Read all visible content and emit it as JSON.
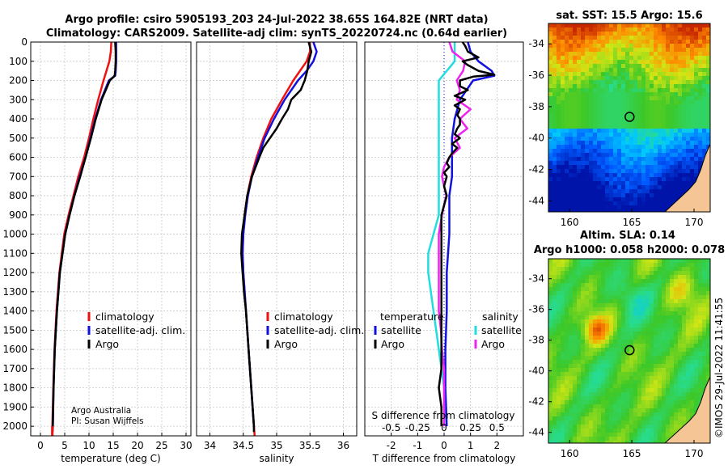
{
  "header": {
    "line1": "Argo profile: csiro 5905193_203 24-Jul-2022 38.65S 164.82E (NRT data)",
    "line2": "Climatology: CARS2009. Satellite-adj clim: synTS_20220724.nc (0.64d earlier)"
  },
  "colors": {
    "climatology": "#ee1111",
    "satellite_clim": "#1111dd",
    "argo": "#000000",
    "sat_t_diff": "#1111dd",
    "sat_s_diff": "#22dddd",
    "argo_s_diff": "#ee22ee"
  },
  "credit": {
    "line1": "Argo Australia",
    "line2": "PI: Susan Wijffels"
  },
  "watermark": "©IMOS 29-Jul-2022 11:41:55",
  "chart_data": [
    {
      "type": "line",
      "name": "temperature-profile",
      "xlabel": "temperature (deg C)",
      "ylabel": "",
      "xlim": [
        -2,
        31
      ],
      "ylim": [
        2050,
        0
      ],
      "xticks": [
        "0",
        "5",
        "10",
        "15",
        "20",
        "25",
        "30"
      ],
      "yticks": [
        "0",
        "100",
        "200",
        "300",
        "400",
        "500",
        "600",
        "700",
        "800",
        "900",
        "1000",
        "1100",
        "1200",
        "1300",
        "1400",
        "1500",
        "1600",
        "1700",
        "1800",
        "1900",
        "2000"
      ],
      "legend": [
        "climatology",
        "satellite-adj. clim.",
        "Argo"
      ],
      "series": [
        {
          "name": "climatology",
          "depth": [
            0,
            50,
            100,
            150,
            200,
            300,
            400,
            500,
            600,
            700,
            800,
            900,
            1000,
            1200,
            1400,
            1600,
            1800,
            2000,
            2050
          ],
          "values": [
            14.6,
            14.5,
            14.2,
            13.6,
            13.0,
            11.9,
            10.9,
            10.0,
            9.0,
            7.8,
            6.8,
            5.8,
            4.9,
            3.9,
            3.3,
            2.9,
            2.65,
            2.45,
            2.42
          ]
        },
        {
          "name": "satellite-adj. clim.",
          "depth": [
            0,
            50,
            100,
            150,
            175,
            200,
            300,
            400,
            500,
            600,
            700,
            800,
            900,
            1000,
            1200,
            1400,
            1600,
            1800,
            2000
          ],
          "values": [
            15.6,
            15.6,
            15.6,
            15.5,
            15.4,
            14.1,
            12.5,
            11.3,
            10.3,
            9.3,
            8.1,
            7.0,
            6.0,
            5.1,
            4.0,
            3.4,
            2.95,
            2.7,
            2.55
          ]
        },
        {
          "name": "Argo",
          "depth": [
            0,
            50,
            100,
            150,
            175,
            200,
            300,
            400,
            500,
            600,
            700,
            800,
            900,
            1000,
            1200,
            1400,
            1600,
            1800,
            2000,
            2030
          ],
          "values": [
            15.4,
            15.5,
            15.5,
            15.4,
            15.3,
            14.3,
            12.6,
            11.4,
            10.4,
            9.3,
            8.2,
            7.0,
            6.0,
            5.1,
            4.0,
            3.4,
            2.95,
            2.7,
            2.55,
            2.5
          ]
        }
      ]
    },
    {
      "type": "line",
      "name": "salinity-profile",
      "xlabel": "salinity",
      "xlim": [
        33.8,
        36.2
      ],
      "ylim": [
        2050,
        0
      ],
      "xticks": [
        "34",
        "34.5",
        "35",
        "35.5",
        "36"
      ],
      "legend": [
        "climatology",
        "satellite-adj. clim.",
        "Argo"
      ],
      "series": [
        {
          "name": "climatology",
          "depth": [
            0,
            50,
            100,
            150,
            200,
            300,
            400,
            500,
            600,
            700,
            800,
            900,
            1000,
            1100,
            1200,
            1400,
            1600,
            1800,
            2000,
            2050
          ],
          "values": [
            35.5,
            35.5,
            35.45,
            35.35,
            35.25,
            35.08,
            34.92,
            34.8,
            34.7,
            34.62,
            34.56,
            34.52,
            34.5,
            34.49,
            34.5,
            34.54,
            34.58,
            34.62,
            34.66,
            34.67
          ]
        },
        {
          "name": "satellite-adj. clim.",
          "depth": [
            0,
            50,
            100,
            150,
            200,
            300,
            400,
            500,
            600,
            700,
            800,
            900,
            1000,
            1100,
            1200,
            1400,
            1600,
            1800,
            2000
          ],
          "values": [
            35.55,
            35.6,
            35.55,
            35.45,
            35.32,
            35.12,
            34.96,
            34.82,
            34.72,
            34.63,
            34.57,
            34.53,
            34.5,
            34.49,
            34.5,
            34.54,
            34.58,
            34.62,
            34.66
          ]
        },
        {
          "name": "Argo",
          "depth": [
            0,
            50,
            100,
            150,
            200,
            250,
            300,
            350,
            400,
            450,
            500,
            550,
            600,
            700,
            800,
            900,
            1000,
            1100,
            1200,
            1300,
            1400,
            1600,
            1800,
            1900,
            2000,
            2030
          ],
          "values": [
            35.48,
            35.52,
            35.48,
            35.46,
            35.42,
            35.36,
            35.22,
            35.17,
            35.08,
            35.0,
            34.9,
            34.8,
            34.74,
            34.63,
            34.56,
            34.52,
            34.48,
            34.47,
            34.49,
            34.51,
            34.54,
            34.58,
            34.62,
            34.64,
            34.66,
            34.66
          ]
        }
      ]
    },
    {
      "type": "line",
      "name": "difference-from-climatology",
      "xlabel": "T difference from climatology",
      "xlabel_secondary": "S difference from climatology",
      "xlim": [
        -3,
        3
      ],
      "ylim": [
        2050,
        0
      ],
      "xticks": [
        "-2",
        "-1",
        "0",
        "1",
        "2"
      ],
      "xticks_secondary": [
        "-0.5",
        "-0.25",
        "0",
        "0.25",
        "0.5"
      ],
      "legend_temperature": {
        "title": "temperature",
        "entries": [
          "satellite",
          "Argo"
        ]
      },
      "legend_salinity": {
        "title": "salinity",
        "entries": [
          "satellite",
          "Argo"
        ]
      },
      "series": [
        {
          "name": "T satellite",
          "depth": [
            0,
            50,
            100,
            150,
            175,
            200,
            300,
            400,
            500,
            600,
            700,
            800,
            900,
            1000,
            1200,
            1400,
            1600,
            1800,
            2000
          ],
          "values": [
            0.9,
            1.0,
            1.3,
            1.8,
            1.9,
            1.1,
            0.6,
            0.4,
            0.3,
            0.3,
            0.3,
            0.2,
            0.2,
            0.2,
            0.1,
            0.1,
            0.05,
            0.05,
            0.1
          ]
        },
        {
          "name": "T Argo",
          "depth": [
            0,
            20,
            50,
            80,
            100,
            120,
            150,
            170,
            180,
            200,
            230,
            250,
            280,
            300,
            330,
            350,
            380,
            400,
            430,
            450,
            480,
            500,
            530,
            550,
            580,
            600,
            630,
            650,
            680,
            700,
            750,
            800,
            850,
            900,
            950,
            1000,
            1100,
            1200,
            1300,
            1400,
            1500,
            1600,
            1700,
            1800,
            1900,
            2000
          ],
          "values": [
            0.7,
            0.8,
            0.9,
            1.3,
            0.7,
            0.9,
            1.3,
            1.9,
            1.1,
            0.6,
            0.6,
            0.9,
            0.4,
            0.8,
            0.4,
            0.6,
            0.5,
            0.6,
            0.6,
            0.5,
            0.4,
            0.6,
            0.3,
            0.5,
            0.3,
            0.2,
            0.1,
            0.2,
            0.0,
            0.1,
            0.0,
            0.1,
            0.0,
            -0.1,
            -0.1,
            -0.1,
            -0.1,
            -0.1,
            -0.1,
            -0.1,
            -0.1,
            -0.1,
            -0.1,
            -0.2,
            -0.1,
            -0.1
          ]
        },
        {
          "name": "S satellite",
          "depth": [
            0,
            50,
            100,
            200,
            300,
            400,
            500,
            600,
            700,
            800,
            900,
            1000,
            1100,
            1200,
            1400,
            1600,
            1800,
            1900,
            2000
          ],
          "values": [
            0.1,
            0.1,
            0.1,
            -0.05,
            -0.05,
            -0.05,
            -0.05,
            -0.05,
            -0.05,
            -0.05,
            -0.05,
            -0.1,
            -0.15,
            -0.15,
            -0.1,
            -0.05,
            0,
            0,
            0
          ]
        },
        {
          "name": "S Argo",
          "depth": [
            0,
            50,
            100,
            150,
            200,
            250,
            300,
            350,
            400,
            450,
            500,
            550,
            600,
            650,
            700,
            750,
            800,
            850,
            900,
            1000,
            1100,
            1200,
            1300,
            1400,
            1500,
            1600,
            1700,
            1800,
            1900,
            2000
          ],
          "values": [
            0.05,
            0.08,
            0.2,
            0.18,
            0.12,
            0.15,
            0.12,
            0.25,
            0.15,
            0.22,
            0.1,
            0.15,
            0.05,
            0.0,
            -0.02,
            0.0,
            0.02,
            0.0,
            -0.02,
            -0.05,
            -0.05,
            -0.05,
            -0.05,
            -0.05,
            -0.03,
            -0.02,
            0.0,
            0.0,
            0.0,
            0.0
          ]
        }
      ]
    },
    {
      "type": "heatmap",
      "name": "sst-map",
      "title": "sat. SST: 15.5 Argo: 15.6",
      "xticks": [
        "160",
        "165",
        "170"
      ],
      "yticks": [
        "-34",
        "-36",
        "-38",
        "-40",
        "-42",
        "-44"
      ],
      "xlim": [
        158.3,
        171.3
      ],
      "ylim": [
        -44.7,
        -32.7
      ],
      "argo_position": [
        164.82,
        -38.65
      ]
    },
    {
      "type": "heatmap",
      "name": "sla-map",
      "title": "Altim. SLA: 0.14",
      "subtitle": "Argo h1000: 0.058 h2000: 0.078",
      "xticks": [
        "160",
        "165",
        "170"
      ],
      "yticks": [
        "-34",
        "-36",
        "-38",
        "-40",
        "-42",
        "-44"
      ],
      "xlim": [
        158.3,
        171.3
      ],
      "ylim": [
        -44.7,
        -32.7
      ],
      "argo_position": [
        164.82,
        -38.65
      ]
    }
  ]
}
